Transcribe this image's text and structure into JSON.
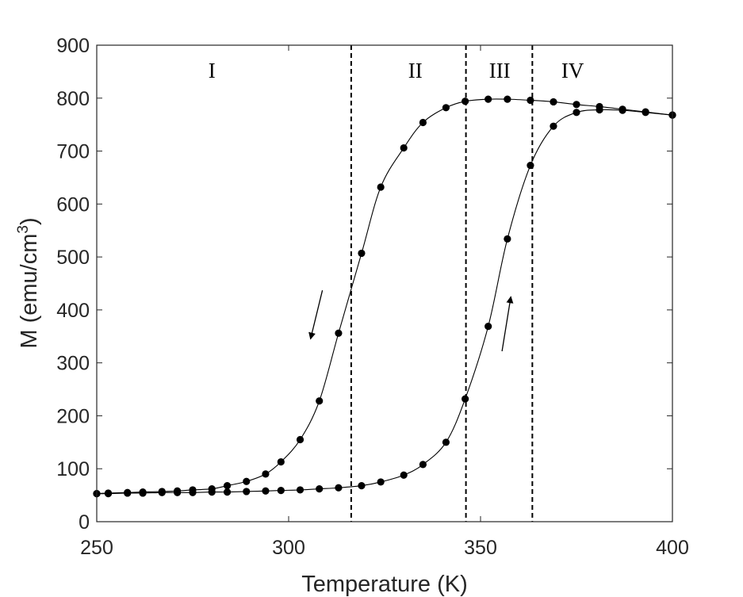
{
  "chart_data": {
    "type": "line",
    "title": "",
    "xlabel": "Temperature (K)",
    "ylabel": "M (emu/cm",
    "ylabel_superscript": "3",
    "ylabel_close": ")",
    "xlim": [
      250,
      400
    ],
    "ylim": [
      0,
      900
    ],
    "xticks": [
      250,
      300,
      350,
      400
    ],
    "xtick_labels": [
      "250",
      "300",
      "350",
      "400"
    ],
    "yticks": [
      0,
      100,
      200,
      300,
      400,
      500,
      600,
      700,
      800,
      900
    ],
    "ytick_labels": [
      "0",
      "100",
      "200",
      "300",
      "400",
      "500",
      "600",
      "700",
      "800",
      "900"
    ],
    "grid": false,
    "box": true,
    "region_boundaries": [
      316.3,
      346.2,
      363.5
    ],
    "regions": [
      {
        "label": "I",
        "x": 280
      },
      {
        "label": "II",
        "x": 333
      },
      {
        "label": "III",
        "x": 355
      },
      {
        "label": "IV",
        "x": 374
      }
    ],
    "series": [
      {
        "x": [
          250,
          253,
          258,
          262,
          267,
          271,
          275,
          280,
          284,
          289,
          294,
          298,
          303,
          308,
          313,
          319,
          324,
          330,
          335,
          341,
          346,
          352,
          357,
          363,
          369,
          375,
          381,
          387,
          393,
          400
        ],
        "y": [
          53,
          54,
          55,
          56,
          57,
          58,
          60,
          62,
          68,
          76,
          90,
          113,
          155,
          228,
          356,
          507,
          632,
          706,
          754,
          782,
          794,
          798,
          798,
          796,
          793,
          788,
          784,
          779,
          774,
          768
        ],
        "arrow": {
          "x1": 308.8,
          "y1": 437,
          "x2": 305.7,
          "y2": 345
        }
      },
      {
        "x": [
          250,
          253,
          258,
          262,
          267,
          271,
          275,
          280,
          284,
          289,
          294,
          298,
          303,
          308,
          313,
          319,
          324,
          330,
          335,
          341,
          346,
          352,
          357,
          363,
          369,
          375,
          381,
          387,
          393,
          400
        ],
        "y": [
          53,
          53,
          54,
          54,
          55,
          55,
          55,
          56,
          56,
          57,
          58,
          59,
          60,
          62,
          64,
          68,
          75,
          88,
          108,
          150,
          232,
          369,
          534,
          673,
          747,
          773,
          778,
          777,
          773,
          768
        ],
        "arrow": {
          "x1": 355.6,
          "y1": 322,
          "x2": 357.9,
          "y2": 425
        }
      }
    ]
  }
}
